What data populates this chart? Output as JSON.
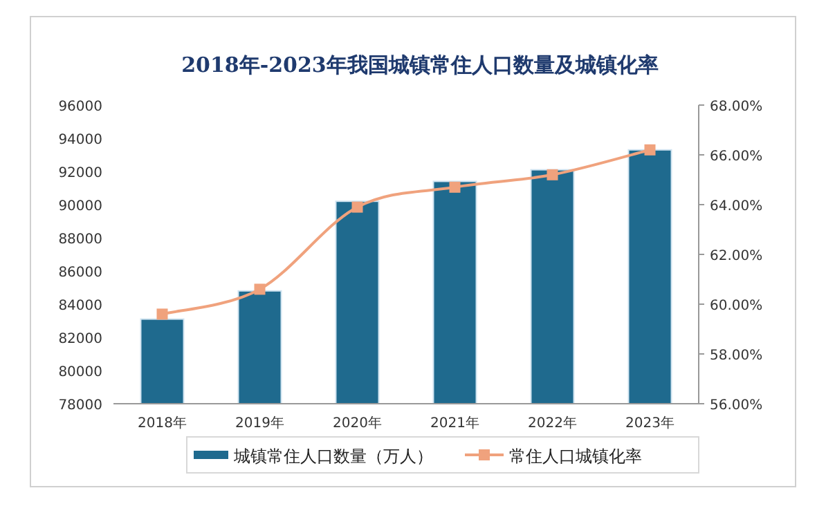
{
  "chart_data": {
    "type": "bar",
    "title": "2018年-2023年我国城镇常住人口数量及城镇化率",
    "categories": [
      "2018年",
      "2019年",
      "2020年",
      "2021年",
      "2022年",
      "2023年"
    ],
    "series": [
      {
        "name": "城镇常住人口数量（万人）",
        "color": "#1f6a8e",
        "values": [
          83100,
          84800,
          90200,
          91400,
          92100,
          93300
        ]
      },
      {
        "name": "常住人口城镇化率",
        "type": "line",
        "axis": "y2",
        "color": "#f0a27d",
        "values": [
          59.6,
          60.6,
          63.9,
          64.7,
          65.2,
          66.2
        ]
      }
    ],
    "ylim": [
      78000,
      96000
    ],
    "yticks": [
      78000,
      80000,
      82000,
      84000,
      86000,
      88000,
      90000,
      92000,
      94000,
      96000
    ],
    "y2lim": [
      56,
      68
    ],
    "y2ticks": [
      {
        "value": 56,
        "label": "56.00%"
      },
      {
        "value": 58,
        "label": "58.00%"
      },
      {
        "value": 60,
        "label": "60.00%"
      },
      {
        "value": 62,
        "label": "62.00%"
      },
      {
        "value": 64,
        "label": "64.00%"
      },
      {
        "value": 66,
        "label": "66.00%"
      },
      {
        "value": 68,
        "label": "68.00%"
      }
    ],
    "marker": "square",
    "grid": false,
    "legend": "bottom"
  }
}
